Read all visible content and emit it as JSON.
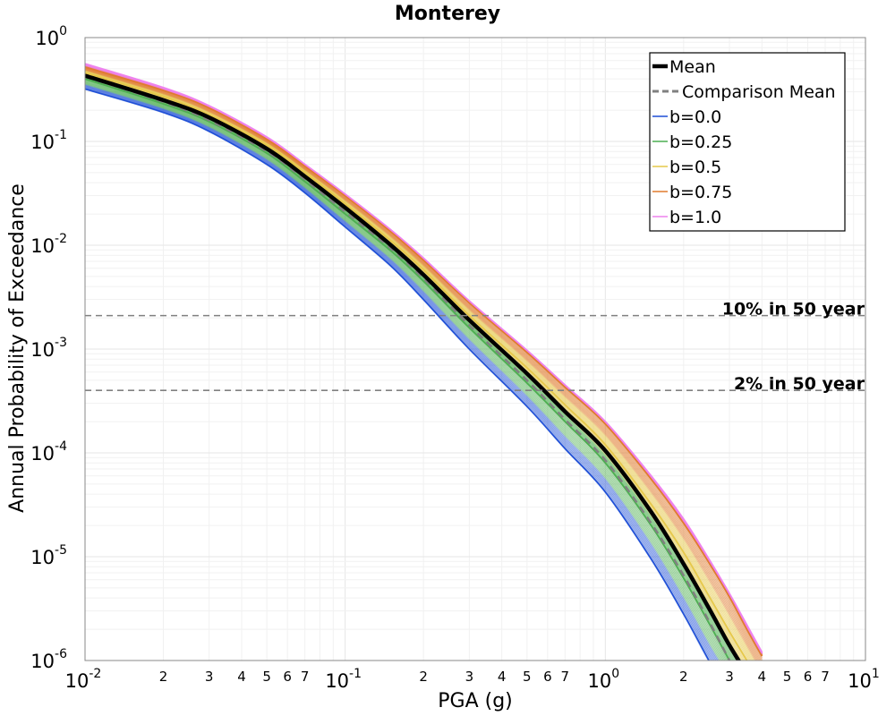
{
  "chart_data": {
    "type": "line",
    "title": "Monterey",
    "xlabel": "PGA (g)",
    "ylabel": "Annual Probability of Exceedance",
    "x_scale": "log",
    "y_scale": "log",
    "xlim": [
      0.01,
      10
    ],
    "ylim": [
      1e-06,
      1
    ],
    "grid": true,
    "legend_position": "top-right",
    "x_major_ticks": [
      {
        "value": 0.01,
        "base": "10",
        "exp": "-2"
      },
      {
        "value": 0.1,
        "base": "10",
        "exp": "-1"
      },
      {
        "value": 1,
        "base": "10",
        "exp": "0"
      },
      {
        "value": 10,
        "base": "10",
        "exp": "1"
      }
    ],
    "y_major_ticks": [
      {
        "value": 1,
        "base": "10",
        "exp": "0"
      },
      {
        "value": 0.1,
        "base": "10",
        "exp": "-1"
      },
      {
        "value": 0.01,
        "base": "10",
        "exp": "-2"
      },
      {
        "value": 0.001,
        "base": "10",
        "exp": "-3"
      },
      {
        "value": 0.0001,
        "base": "10",
        "exp": "-4"
      },
      {
        "value": 1e-05,
        "base": "10",
        "exp": "-5"
      },
      {
        "value": 1e-06,
        "base": "10",
        "exp": "-6"
      }
    ],
    "x_minor_tick_labels": [
      "2",
      "3",
      "4",
      "5",
      "6",
      "7"
    ],
    "x": [
      0.01,
      0.02,
      0.03,
      0.05,
      0.07,
      0.1,
      0.15,
      0.2,
      0.3,
      0.5,
      0.7,
      1.0,
      1.5,
      2.0,
      2.5,
      3.0,
      3.5,
      4.0,
      4.5
    ],
    "series": [
      {
        "name": "Mean",
        "style": "solid-thick",
        "color": "#000000",
        "values": [
          0.43,
          0.25,
          0.17,
          0.085,
          0.046,
          0.023,
          0.01,
          0.0052,
          0.0019,
          0.00058,
          0.00025,
          0.000105,
          2.7e-05,
          8.5e-06,
          3.2e-06,
          1.4e-06,
          7.5e-07,
          null,
          null
        ]
      },
      {
        "name": "Comparison Mean",
        "style": "dashed",
        "color": "#808080",
        "values": [
          0.42,
          0.24,
          0.16,
          0.08,
          0.043,
          0.021,
          0.0093,
          0.0048,
          0.0017,
          0.0005,
          0.00021,
          8.5e-05,
          2.1e-05,
          6.6e-06,
          2.4e-06,
          1e-06,
          null,
          null,
          null
        ]
      },
      {
        "name": "b=0.0",
        "color": "#1f4fd6",
        "values": [
          0.32,
          0.19,
          0.125,
          0.06,
          0.032,
          0.015,
          0.0063,
          0.003,
          0.001,
          0.00028,
          0.00011,
          4.2e-05,
          9.5e-06,
          2.8e-06,
          1e-06,
          null,
          null,
          null,
          null
        ]
      },
      {
        "name": "b=0.25",
        "color": "#4caf50",
        "values": [
          0.4,
          0.23,
          0.155,
          0.077,
          0.041,
          0.02,
          0.0088,
          0.0045,
          0.0016,
          0.00047,
          0.0002,
          8e-05,
          2e-05,
          6.2e-06,
          2.3e-06,
          1e-06,
          null,
          null,
          null
        ]
      },
      {
        "name": "b=0.5",
        "color": "#e6c84a",
        "values": [
          0.46,
          0.27,
          0.18,
          0.092,
          0.05,
          0.025,
          0.011,
          0.0058,
          0.0021,
          0.00066,
          0.00029,
          0.00012,
          3.2e-05,
          1.1e-05,
          4.2e-06,
          1.9e-06,
          1e-06,
          null,
          null
        ]
      },
      {
        "name": "b=0.75",
        "color": "#e07b2f",
        "values": [
          0.52,
          0.31,
          0.21,
          0.105,
          0.058,
          0.03,
          0.0135,
          0.0072,
          0.0028,
          0.00093,
          0.00043,
          0.00019,
          5.6e-05,
          2.1e-05,
          8.8e-06,
          4.1e-06,
          2e-06,
          1.1e-06,
          null
        ]
      },
      {
        "name": "b=1.0",
        "color": "#ee82ee",
        "values": [
          0.56,
          0.33,
          0.22,
          0.11,
          0.06,
          0.031,
          0.014,
          0.0075,
          0.0029,
          0.00097,
          0.00045,
          0.0002,
          6e-05,
          2.3e-05,
          9.5e-06,
          4.4e-06,
          2.2e-06,
          1.2e-06,
          null
        ]
      }
    ],
    "annotations": [
      {
        "text": "10% in 50 year",
        "y": 0.0021
      },
      {
        "text": "2% in 50 year",
        "y": 0.0004
      }
    ]
  },
  "colors": {
    "axis": "#888888",
    "grid": "#e6e6e6",
    "minor_grid": "#f1f1f1",
    "reference_line": "#808080"
  }
}
